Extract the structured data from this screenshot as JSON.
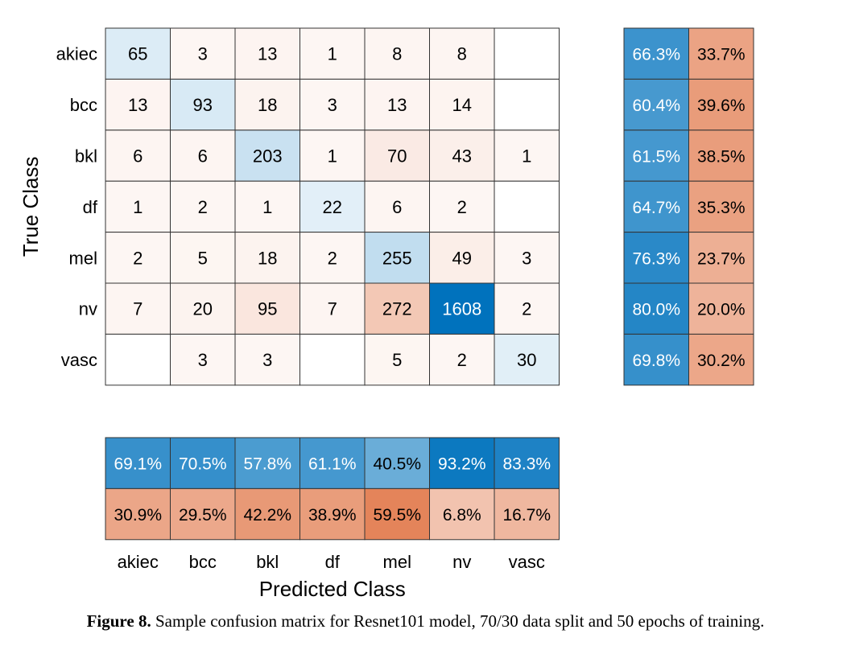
{
  "chart_data": {
    "type": "heatmap",
    "classes": [
      "akiec",
      "bcc",
      "bkl",
      "df",
      "mel",
      "nv",
      "vasc"
    ],
    "ylabel": "True Class",
    "xlabel": "Predicted Class",
    "matrix": [
      [
        65,
        3,
        13,
        1,
        8,
        8,
        null
      ],
      [
        13,
        93,
        18,
        3,
        13,
        14,
        null
      ],
      [
        6,
        6,
        203,
        1,
        70,
        43,
        1
      ],
      [
        1,
        2,
        1,
        22,
        6,
        2,
        null
      ],
      [
        2,
        5,
        18,
        2,
        255,
        49,
        3
      ],
      [
        7,
        20,
        95,
        7,
        272,
        1608,
        2
      ],
      [
        null,
        3,
        3,
        null,
        5,
        2,
        30
      ]
    ],
    "row_summary": {
      "correct": [
        "66.3%",
        "60.4%",
        "61.5%",
        "64.7%",
        "76.3%",
        "80.0%",
        "69.8%"
      ],
      "incorrect": [
        "33.7%",
        "39.6%",
        "38.5%",
        "35.3%",
        "23.7%",
        "20.0%",
        "30.2%"
      ]
    },
    "column_summary": {
      "correct": [
        "69.1%",
        "70.5%",
        "57.8%",
        "61.1%",
        "40.5%",
        "93.2%",
        "83.3%"
      ],
      "incorrect": [
        "30.9%",
        "29.5%",
        "42.2%",
        "38.9%",
        "59.5%",
        "6.8%",
        "16.7%"
      ]
    },
    "colors": {
      "correct": "#0072bd",
      "incorrect": "#d95319",
      "border": "#333333"
    }
  },
  "caption": {
    "label": "Figure 8.",
    "text": " Sample confusion matrix for Resnet101 model, 70/30 data split and 50 epochs of training."
  }
}
